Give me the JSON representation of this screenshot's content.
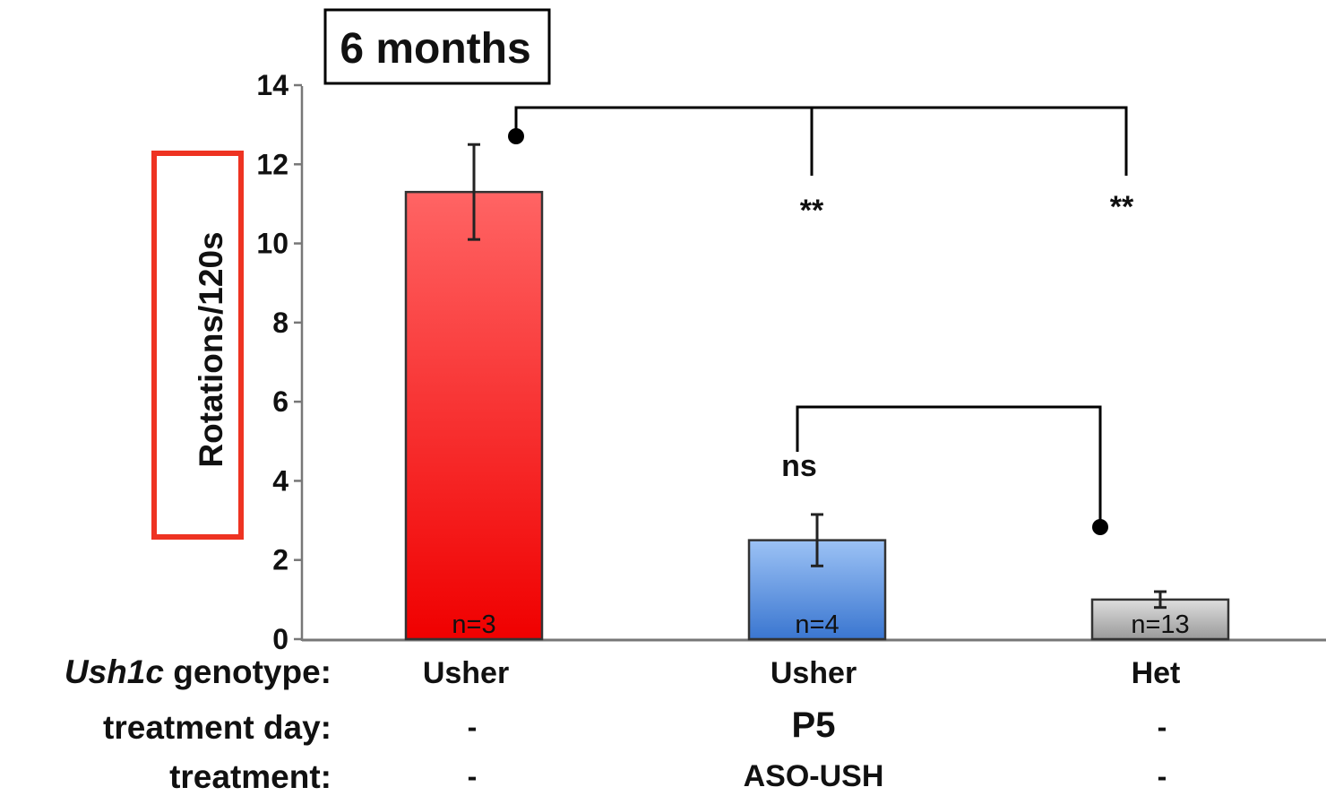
{
  "chart_data": {
    "type": "bar",
    "title": "6 months",
    "ylabel": "Rotations/120s",
    "ylim": [
      0,
      14
    ],
    "yticks": [
      "0",
      "2",
      "4",
      "6",
      "8",
      "10",
      "12",
      "14"
    ],
    "categories": [
      "Usher",
      "Usher",
      "Het"
    ],
    "values": [
      11.3,
      2.5,
      1.0
    ],
    "errors": [
      1.2,
      0.65,
      0.2
    ],
    "n_labels": [
      "n=3",
      "n=4",
      "n=13"
    ],
    "bar_colors": [
      "#e8141a",
      "#5d93dc",
      "#b8b8b8"
    ],
    "comparisons": [
      {
        "from": 0,
        "to": 1,
        "label": "**"
      },
      {
        "from": 0,
        "to": 2,
        "label": "**"
      },
      {
        "from": 2,
        "to": 1,
        "label": "ns"
      }
    ],
    "highlight_box_color": "#ee3322",
    "grid": false,
    "legend": "none"
  },
  "rows": [
    {
      "label_italic": "Ush1c",
      "label": " genotype:",
      "values": [
        "Usher",
        "Usher",
        "Het"
      ]
    },
    {
      "label": "treatment day:",
      "values": [
        "-",
        "P5",
        "-"
      ]
    },
    {
      "label": "treatment:",
      "values": [
        "-",
        "ASO-USH",
        "-"
      ],
      "accent": "#3f6fe0"
    }
  ]
}
